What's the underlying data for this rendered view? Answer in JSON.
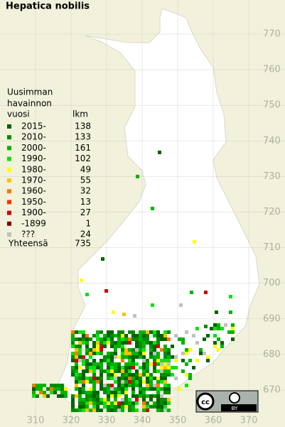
{
  "title": "Hepatica nobilis",
  "legend": {
    "heading": [
      "Uusimman",
      "havainnon"
    ],
    "column_headers": [
      "vuosi",
      "lkm"
    ],
    "rows": [
      {
        "label": "2015-",
        "count": 138,
        "color": "#006400"
      },
      {
        "label": "2010-",
        "count": 133,
        "color": "#008c00"
      },
      {
        "label": "2000-",
        "count": 161,
        "color": "#00b400"
      },
      {
        "label": "1990-",
        "count": 102,
        "color": "#10e010"
      },
      {
        "label": "1980-",
        "count": 49,
        "color": "#ffff00"
      },
      {
        "label": "1970-",
        "count": 55,
        "color": "#ffc000"
      },
      {
        "label": "1960-",
        "count": 32,
        "color": "#ff7800"
      },
      {
        "label": "1950-",
        "count": 13,
        "color": "#ff3000"
      },
      {
        "label": "1900-",
        "count": 27,
        "color": "#d00000"
      },
      {
        "label": "-1899",
        "count": 1,
        "color": "#800000"
      },
      {
        "label": "???",
        "count": 24,
        "color": "#c0c0c0"
      }
    ],
    "total": {
      "label": "Yhteensä",
      "count": 735
    }
  },
  "grid": {
    "y_labels": [
      770,
      760,
      750,
      740,
      730,
      720,
      710,
      700,
      690,
      680,
      670
    ],
    "x_labels": [
      310,
      320,
      330,
      340,
      350,
      360,
      370
    ]
  },
  "license": {
    "badge": "BY"
  }
}
